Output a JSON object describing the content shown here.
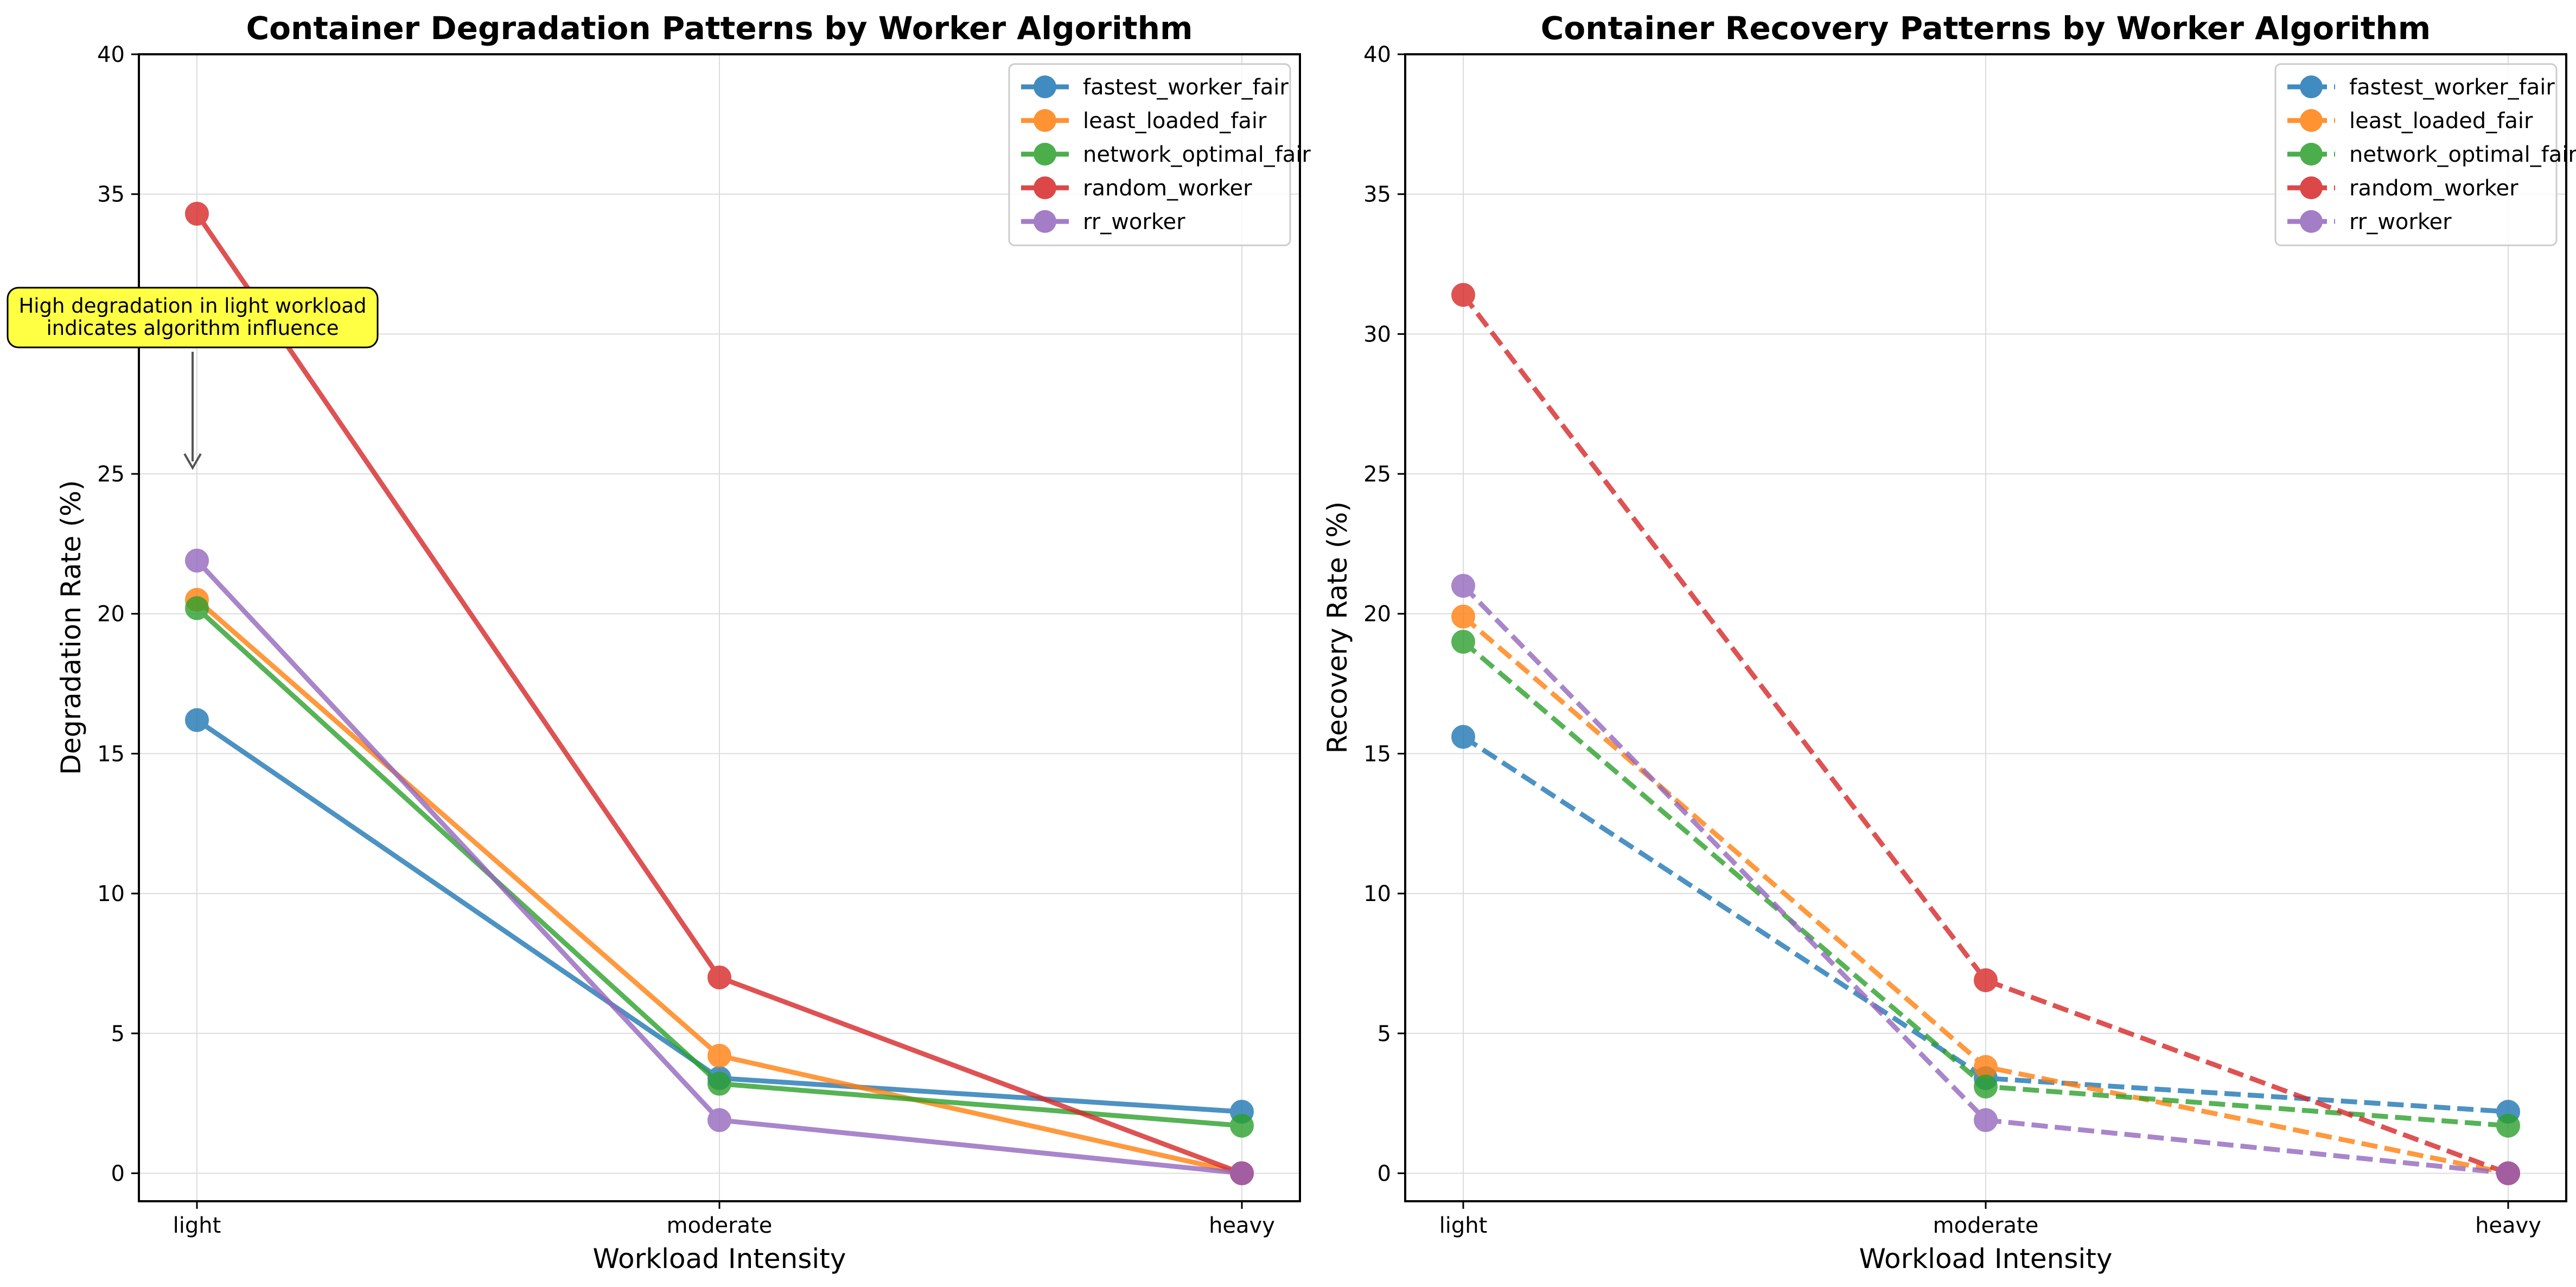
{
  "chart_data": [
    {
      "type": "line",
      "title": "Container Degradation Patterns by Worker Algorithm",
      "xlabel": "Workload Intensity",
      "ylabel": "Degradation Rate (%)",
      "categories": [
        "light",
        "moderate",
        "heavy"
      ],
      "ylim": [
        -1,
        40
      ],
      "yticks": [
        0,
        5,
        10,
        15,
        20,
        25,
        30,
        35,
        40
      ],
      "grid": true,
      "line_style": "solid",
      "legend_position": "top-right",
      "series": [
        {
          "name": "fastest_worker_fair",
          "color": "#1f77b4",
          "values": [
            16.2,
            3.4,
            2.2
          ]
        },
        {
          "name": "least_loaded_fair",
          "color": "#ff7f0e",
          "values": [
            20.5,
            4.2,
            0.0
          ]
        },
        {
          "name": "network_optimal_fair",
          "color": "#2ca02c",
          "values": [
            20.2,
            3.2,
            1.7
          ]
        },
        {
          "name": "random_worker",
          "color": "#d62728",
          "values": [
            34.3,
            7.0,
            0.0
          ]
        },
        {
          "name": "rr_worker",
          "color": "#9467bd",
          "values": [
            21.9,
            1.9,
            0.0
          ]
        }
      ],
      "annotation": {
        "lines": [
          "High degradation in light workload",
          "indicates algorithm influence"
        ],
        "target_category": "light",
        "target_value": 25,
        "text_value": 30.5,
        "box_color": "#ffff44"
      }
    },
    {
      "type": "line",
      "title": "Container Recovery Patterns by Worker Algorithm",
      "xlabel": "Workload Intensity",
      "ylabel": "Recovery Rate (%)",
      "categories": [
        "light",
        "moderate",
        "heavy"
      ],
      "ylim": [
        -1,
        40
      ],
      "yticks": [
        0,
        5,
        10,
        15,
        20,
        25,
        30,
        35,
        40
      ],
      "grid": true,
      "line_style": "dashed",
      "legend_position": "top-right",
      "series": [
        {
          "name": "fastest_worker_fair",
          "color": "#1f77b4",
          "values": [
            15.6,
            3.4,
            2.2
          ]
        },
        {
          "name": "least_loaded_fair",
          "color": "#ff7f0e",
          "values": [
            19.9,
            3.8,
            0.0
          ]
        },
        {
          "name": "network_optimal_fair",
          "color": "#2ca02c",
          "values": [
            19.0,
            3.1,
            1.7
          ]
        },
        {
          "name": "random_worker",
          "color": "#d62728",
          "values": [
            31.4,
            6.9,
            0.0
          ]
        },
        {
          "name": "rr_worker",
          "color": "#9467bd",
          "values": [
            21.0,
            1.9,
            0.0
          ]
        }
      ]
    }
  ]
}
